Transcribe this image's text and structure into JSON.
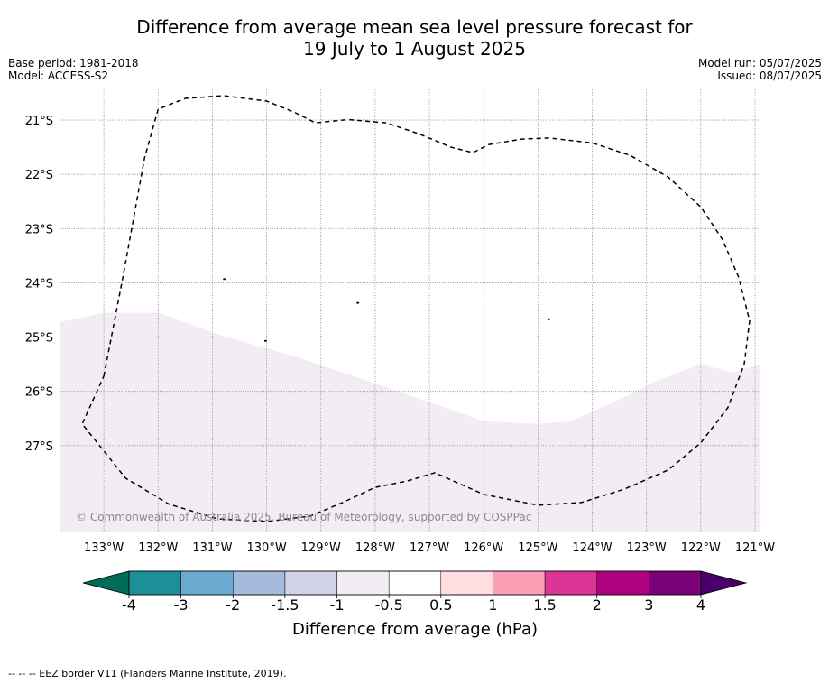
{
  "title_line1": "Difference from average mean sea level pressure forecast for",
  "title_line2": "19 July to 1 August 2025",
  "meta_left": {
    "base_period": "Base period: 1981-2018",
    "model": "Model: ACCESS-S2"
  },
  "meta_right": {
    "model_run": "Model run: 05/07/2025",
    "issued": "Issued: 08/07/2025"
  },
  "map": {
    "lat_labels": [
      "21°S",
      "22°S",
      "23°S",
      "24°S",
      "25°S",
      "26°S",
      "27°S"
    ],
    "lat_values": [
      -21,
      -22,
      -23,
      -24,
      -25,
      -26,
      -27
    ],
    "lon_labels": [
      "133°W",
      "132°W",
      "131°W",
      "130°W",
      "129°W",
      "128°W",
      "127°W",
      "126°W",
      "125°W",
      "124°W",
      "123°W",
      "122°W",
      "121°W"
    ],
    "lon_values": [
      -133,
      -132,
      -131,
      -130,
      -129,
      -128,
      -127,
      -126,
      -125,
      -124,
      -123,
      -122,
      -121
    ],
    "extent": {
      "lon_min": -133.8,
      "lon_max": -120.9,
      "lat_min": -28.6,
      "lat_max": -20.4
    },
    "shaded_category": "-1 to -0.5",
    "shaded_color": "#f3ecf5",
    "shaded_boundary": [
      [
        -133.8,
        -24.72
      ],
      [
        -133.0,
        -24.55
      ],
      [
        -132.0,
        -24.55
      ],
      [
        -130.8,
        -24.98
      ],
      [
        -129.5,
        -25.35
      ],
      [
        -128.3,
        -25.75
      ],
      [
        -127.0,
        -26.2
      ],
      [
        -126.0,
        -26.55
      ],
      [
        -125.0,
        -26.6
      ],
      [
        -124.4,
        -26.55
      ],
      [
        -123.5,
        -26.15
      ],
      [
        -122.8,
        -25.8
      ],
      [
        -122.0,
        -25.5
      ],
      [
        -121.4,
        -25.65
      ],
      [
        -120.9,
        -25.5
      ]
    ],
    "eez_border": [
      [
        -133.0,
        -25.72
      ],
      [
        -132.65,
        -23.9
      ],
      [
        -132.25,
        -21.7
      ],
      [
        -132.0,
        -20.8
      ],
      [
        -131.5,
        -20.6
      ],
      [
        -130.8,
        -20.55
      ],
      [
        -130.0,
        -20.65
      ],
      [
        -129.5,
        -20.85
      ],
      [
        -129.1,
        -21.05
      ],
      [
        -128.5,
        -20.99
      ],
      [
        -127.8,
        -21.05
      ],
      [
        -127.2,
        -21.25
      ],
      [
        -126.6,
        -21.5
      ],
      [
        -126.2,
        -21.6
      ],
      [
        -125.9,
        -21.45
      ],
      [
        -125.3,
        -21.35
      ],
      [
        -124.8,
        -21.33
      ],
      [
        -124.0,
        -21.42
      ],
      [
        -123.3,
        -21.65
      ],
      [
        -122.6,
        -22.05
      ],
      [
        -122.0,
        -22.6
      ],
      [
        -121.6,
        -23.2
      ],
      [
        -121.3,
        -23.9
      ],
      [
        -121.1,
        -24.7
      ],
      [
        -121.2,
        -25.5
      ],
      [
        -121.5,
        -26.3
      ],
      [
        -122.0,
        -26.95
      ],
      [
        -122.6,
        -27.45
      ],
      [
        -123.4,
        -27.8
      ],
      [
        -124.2,
        -28.05
      ],
      [
        -125.0,
        -28.1
      ],
      [
        -126.0,
        -27.9
      ],
      [
        -126.9,
        -27.5
      ],
      [
        -127.4,
        -27.65
      ],
      [
        -128.0,
        -27.77
      ],
      [
        -128.6,
        -28.05
      ],
      [
        -129.2,
        -28.3
      ],
      [
        -130.0,
        -28.4
      ],
      [
        -130.9,
        -28.35
      ],
      [
        -131.8,
        -28.08
      ],
      [
        -132.6,
        -27.6
      ],
      [
        -133.4,
        -26.6
      ],
      [
        -133.0,
        -25.72
      ]
    ],
    "islands": [
      [
        -130.78,
        -23.93
      ],
      [
        -128.32,
        -24.37
      ],
      [
        -130.02,
        -25.07
      ],
      [
        -124.8,
        -24.67
      ]
    ],
    "copyright": "© Commonwealth of Australia 2025, Bureau of Meteorology, supported by COSPPac"
  },
  "colorbar": {
    "ticks": [
      "-4",
      "-3",
      "-2",
      "-1.5",
      "-1",
      "-0.5",
      "0.5",
      "1",
      "1.5",
      "2",
      "3",
      "4"
    ],
    "colors": [
      "#1b9098",
      "#6aaad0",
      "#a6badb",
      "#d0d2e6",
      "#f3ecf5",
      "#ffffff",
      "#ffdde0",
      "#fa9fb5",
      "#dd3497",
      "#ae017e",
      "#7a0177"
    ],
    "under_color": "#016c59",
    "over_color": "#49006a",
    "label": "Difference from average (hPa)"
  },
  "footnote": "-- -- -- EEZ border V11 (Flanders Marine Institute, 2019)."
}
